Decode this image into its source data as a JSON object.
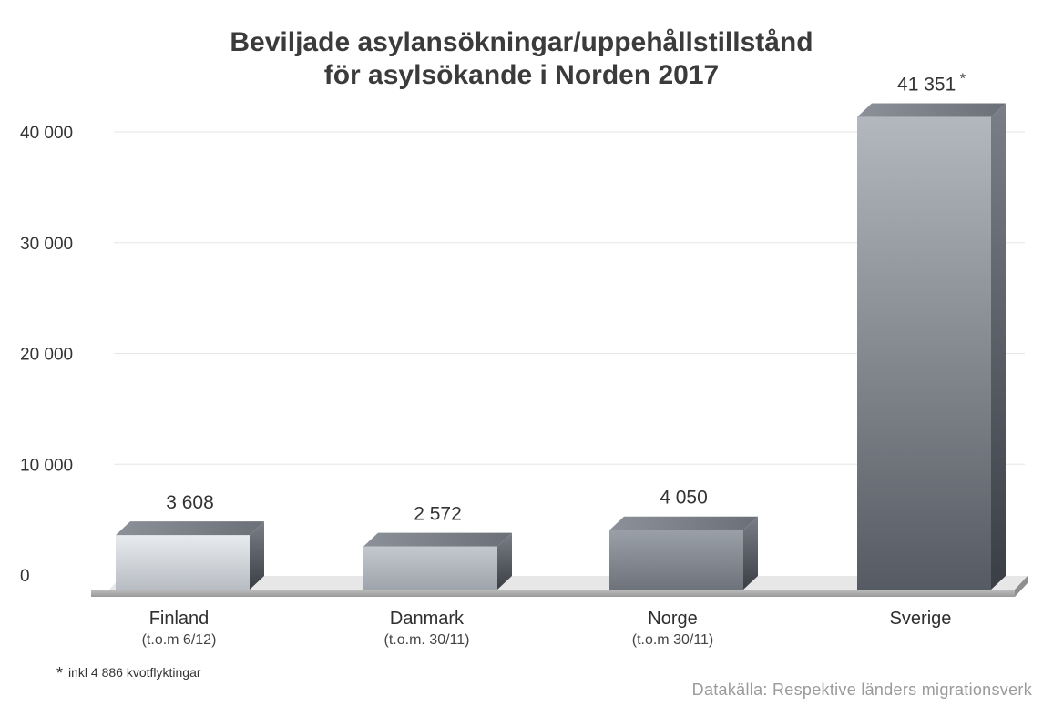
{
  "chart_data": {
    "type": "bar",
    "title": [
      "Beviljade asylansökningar/uppehållstillstånd",
      "för asylsökande i Norden 2017"
    ],
    "categories": [
      "Finland",
      "Danmark",
      "Norge",
      "Sverige"
    ],
    "sublabels": [
      "(t.o.m 6/12)",
      "(t.o.m. 30/11)",
      "(t.o.m 30/11)",
      ""
    ],
    "values": [
      3608,
      2572,
      4050,
      41351
    ],
    "value_labels": [
      "3 608",
      "2 572",
      "4 050",
      "41 351"
    ],
    "value_marks": [
      "",
      "",
      "",
      "*"
    ],
    "yticks": [
      0,
      10000,
      20000,
      30000,
      40000
    ],
    "ytick_labels": [
      "0",
      "10 000",
      "20 000",
      "30 000",
      "40 000"
    ],
    "ylim": [
      0,
      42000
    ],
    "grid": true,
    "bar_colors": {
      "light": "#dcdfe4",
      "mid": "#a9aeb6",
      "dark": "#4e535b"
    }
  },
  "footnote": {
    "mark": "*",
    "text": "inkl 4 886 kvotflyktingar"
  },
  "source": "Datakälla: Respektive länders migrationsverk"
}
